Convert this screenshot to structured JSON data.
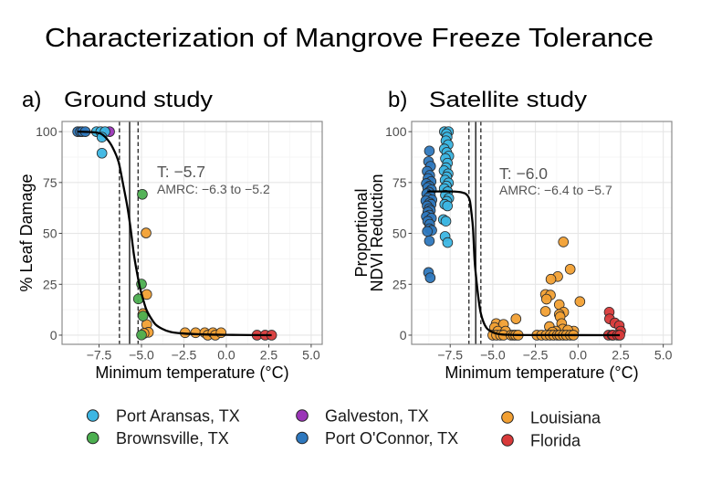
{
  "page": {
    "title": "Characterization of Mangrove Freeze Tolerance"
  },
  "legend": {
    "items": [
      {
        "label": "Port Aransas, TX",
        "color": "#3CB6E3"
      },
      {
        "label": "Brownsville, TX",
        "color": "#4CAF50"
      },
      {
        "label": "Galveston, TX",
        "color": "#9B35B8"
      },
      {
        "label": "Port O'Connor, TX",
        "color": "#2E78BE"
      },
      {
        "label": "Louisiana",
        "color": "#F2A033"
      },
      {
        "label": "Florida",
        "color": "#D93A3A"
      }
    ]
  },
  "chart_data": [
    {
      "type": "scatter",
      "panel_label": "a)",
      "title": "Ground study",
      "xlabel": "Minimum temperature (°C)",
      "ylabel": [
        "% Leaf Damage"
      ],
      "xlim": [
        -9.68,
        5.65
      ],
      "ylim": [
        -4.5,
        105
      ],
      "xticks": [
        -7.5,
        -5,
        -2.5,
        0,
        2.5,
        5
      ],
      "xtick_labels": [
        "−7.5",
        "−5.0",
        "−2.5",
        "0.0",
        "2.5",
        "5.0"
      ],
      "yticks": [
        0,
        25,
        50,
        75,
        100
      ],
      "ytick_labels": [
        "0",
        "25",
        "50",
        "75",
        "100"
      ],
      "grid": true,
      "legend_placement": "bottom",
      "threshold": {
        "value": -5.7,
        "label": "T: −5.7"
      },
      "amrc": {
        "range": [
          -6.3,
          -5.2
        ],
        "label": "AMRC: −6.3 to −5.2"
      },
      "fit_curve": {
        "x": [
          -8.76,
          -8.0,
          -7.4,
          -6.9,
          -6.6,
          -6.34,
          -6.08,
          -5.81,
          -5.63,
          -5.45,
          -5.27,
          -5.09,
          -4.9,
          -4.73,
          -4.45,
          -4.19,
          -3.8,
          -3.3,
          -2.5,
          -1.5,
          0,
          1.5,
          2.67
        ],
        "y": [
          100,
          99.8,
          99,
          95,
          90.5,
          84.8,
          74,
          62,
          51.7,
          39.8,
          31,
          23.3,
          17.5,
          12.9,
          8.5,
          5.4,
          3.2,
          1.6,
          0.8,
          0.4,
          0.15,
          0.05,
          0
        ]
      },
      "series": [
        {
          "name": "Louisiana",
          "points": [
            [
              -4.73,
              50.2
            ],
            [
              -4.69,
              20.0
            ],
            [
              -4.91,
              10.6
            ],
            [
              -4.69,
              5.2
            ],
            [
              -4.59,
              1.4
            ],
            [
              -4.85,
              0.9
            ],
            [
              -2.43,
              1.2
            ],
            [
              -1.81,
              1.2
            ],
            [
              -1.27,
              1.2
            ],
            [
              -1.09,
              0.0
            ],
            [
              -0.79,
              1.2
            ],
            [
              -0.65,
              0.0
            ],
            [
              -0.31,
              1.2
            ]
          ]
        },
        {
          "name": "Florida",
          "points": [
            [
              1.81,
              0
            ],
            [
              2.29,
              0
            ],
            [
              2.67,
              0
            ]
          ]
        },
        {
          "name": "Galveston, TX",
          "points": [
            [
              -6.88,
              100
            ]
          ]
        },
        {
          "name": "Port O'Connor, TX",
          "points": [
            [
              -8.76,
              100
            ],
            [
              -8.6,
              100
            ],
            [
              -8.49,
              100
            ],
            [
              -8.31,
              100
            ]
          ]
        },
        {
          "name": "Port Aransas, TX",
          "points": [
            [
              -7.65,
              100
            ],
            [
              -7.4,
              100
            ],
            [
              -7.15,
              100
            ],
            [
              -7.33,
              97.3
            ],
            [
              -7.33,
              89.4
            ]
          ]
        },
        {
          "name": "Brownsville, TX",
          "points": [
            [
              -4.95,
              69.2
            ],
            [
              -5.0,
              25.1
            ],
            [
              -5.18,
              17.8
            ],
            [
              -4.91,
              9.4
            ],
            [
              -5.0,
              0.1
            ]
          ]
        }
      ]
    },
    {
      "type": "scatter",
      "panel_label": "b)",
      "title": "Satellite study",
      "xlabel": "Minimum temperature (°C)",
      "ylabel": [
        "Proportional",
        "NDVI Reduction"
      ],
      "xlim": [
        -9.76,
        5.5
      ],
      "ylim": [
        -4.5,
        105
      ],
      "xticks": [
        -7.5,
        -5,
        -2.5,
        0,
        2.5,
        5
      ],
      "xtick_labels": [
        "−7.5",
        "−5.0",
        "−2.5",
        "0.0",
        "2.5",
        "5.0"
      ],
      "yticks": [
        0,
        25,
        50,
        75,
        100
      ],
      "ytick_labels": [
        "0",
        "25",
        "50",
        "75",
        "100"
      ],
      "grid": true,
      "legend_placement": "bottom",
      "threshold": {
        "value": -6.0,
        "label": "T: −6.0"
      },
      "amrc": {
        "range": [
          -6.4,
          -5.7
        ],
        "label": "AMRC: −6.4 to −5.7"
      },
      "fit_curve": {
        "x": [
          -8.84,
          -7.5,
          -7.0,
          -6.8,
          -6.6,
          -6.45,
          -6.34,
          -6.25,
          -6.16,
          -6.07,
          -5.98,
          -5.89,
          -5.8,
          -5.71,
          -5.55,
          -5.36,
          -5.0,
          -4.64,
          -4.0,
          -3.0,
          2.45
        ],
        "y": [
          70.6,
          70.6,
          70.4,
          70.1,
          69.5,
          68.2,
          65.8,
          60,
          52.3,
          37,
          28.5,
          21.5,
          15.5,
          11,
          6.5,
          3.5,
          1.4,
          0.5,
          0.15,
          0.03,
          0
        ]
      },
      "series": [
        {
          "name": "Louisiana",
          "points": [
            [
              -0.86,
              45.8
            ],
            [
              -0.46,
              32.4
            ],
            [
              -1.19,
              28.8
            ],
            [
              -1.59,
              27.5
            ],
            [
              -1.91,
              20
            ],
            [
              -1.62,
              19.7
            ],
            [
              -1.85,
              17.7
            ],
            [
              0.11,
              16.5
            ],
            [
              -1.1,
              15
            ],
            [
              -1.91,
              11.7
            ],
            [
              -0.84,
              11.3
            ],
            [
              -1.1,
              10.2
            ],
            [
              -1.05,
              9
            ],
            [
              -3.64,
              8
            ],
            [
              -4.8,
              5.7
            ],
            [
              -4.37,
              5.3
            ],
            [
              -0.96,
              5.7
            ],
            [
              -1.68,
              4.2
            ],
            [
              -4.9,
              3.8
            ],
            [
              -0.9,
              3
            ],
            [
              -0.25,
              2
            ],
            [
              -4.7,
              2
            ],
            [
              -4.25,
              2
            ],
            [
              -1.3,
              2
            ],
            [
              -0.6,
              2.5
            ],
            [
              -1.5,
              1.5
            ],
            [
              -5.0,
              0
            ],
            [
              -4.78,
              0
            ],
            [
              -4.55,
              0
            ],
            [
              -4.37,
              0
            ],
            [
              -3.93,
              0
            ],
            [
              -3.78,
              0
            ],
            [
              -3.66,
              0
            ],
            [
              -3.51,
              0
            ],
            [
              -2.41,
              0
            ],
            [
              -2.14,
              0
            ],
            [
              -1.87,
              0
            ],
            [
              -1.64,
              0
            ],
            [
              -1.43,
              0
            ],
            [
              -1.21,
              0
            ],
            [
              -1.07,
              0
            ],
            [
              -0.86,
              0
            ],
            [
              -0.68,
              0
            ],
            [
              -0.45,
              0
            ],
            [
              -0.27,
              0
            ]
          ]
        },
        {
          "name": "Florida",
          "points": [
            [
              1.83,
              11.3
            ],
            [
              1.85,
              8
            ],
            [
              2.16,
              6
            ],
            [
              2.42,
              4.7
            ],
            [
              2.5,
              2
            ],
            [
              1.79,
              0
            ],
            [
              2.0,
              0
            ],
            [
              2.06,
              0
            ],
            [
              2.32,
              0
            ],
            [
              2.45,
              0
            ]
          ]
        },
        {
          "name": "Port O'Connor, TX",
          "points": [
            [
              -8.72,
              90.5
            ],
            [
              -8.77,
              85.3
            ],
            [
              -8.65,
              83
            ],
            [
              -8.85,
              80.5
            ],
            [
              -8.7,
              78.5
            ],
            [
              -8.8,
              77
            ],
            [
              -8.62,
              75.5
            ],
            [
              -8.9,
              74.5
            ],
            [
              -8.72,
              73.2
            ],
            [
              -8.82,
              72.5
            ],
            [
              -8.6,
              71.5
            ],
            [
              -8.75,
              70.3
            ],
            [
              -8.88,
              69.5
            ],
            [
              -8.66,
              68.5
            ],
            [
              -8.8,
              67.3
            ],
            [
              -8.57,
              66.5
            ],
            [
              -8.93,
              66
            ],
            [
              -8.7,
              65
            ],
            [
              -8.62,
              64.3
            ],
            [
              -8.85,
              63.5
            ],
            [
              -8.73,
              62.2
            ],
            [
              -8.66,
              61.3
            ],
            [
              -8.81,
              60.5
            ],
            [
              -8.72,
              59
            ],
            [
              -8.9,
              58.3
            ],
            [
              -8.6,
              57.5
            ],
            [
              -8.82,
              56
            ],
            [
              -8.7,
              54.5
            ],
            [
              -8.72,
              52.3
            ],
            [
              -8.58,
              51.5
            ],
            [
              -8.84,
              51
            ],
            [
              -8.72,
              46.3
            ],
            [
              -8.77,
              30.8
            ],
            [
              -8.67,
              28.2
            ]
          ]
        },
        {
          "name": "Port Aransas, TX",
          "points": [
            [
              -7.84,
              100
            ],
            [
              -7.6,
              100
            ],
            [
              -7.72,
              99
            ],
            [
              -7.68,
              97.3
            ],
            [
              -7.75,
              95.5
            ],
            [
              -7.62,
              93.6
            ],
            [
              -7.84,
              91.5
            ],
            [
              -7.7,
              89.8
            ],
            [
              -7.58,
              88
            ],
            [
              -7.78,
              86.8
            ],
            [
              -7.66,
              84.5
            ],
            [
              -7.74,
              82.3
            ],
            [
              -7.86,
              80.8
            ],
            [
              -7.62,
              79.3
            ],
            [
              -7.7,
              77.8
            ],
            [
              -7.8,
              76.2
            ],
            [
              -7.6,
              74.8
            ],
            [
              -7.72,
              73.3
            ],
            [
              -7.85,
              72
            ],
            [
              -7.65,
              70.5
            ],
            [
              -7.78,
              68.8
            ],
            [
              -7.58,
              67.3
            ],
            [
              -7.7,
              65.8
            ],
            [
              -7.82,
              64.3
            ],
            [
              -7.66,
              63.5
            ],
            [
              -7.9,
              56.8
            ],
            [
              -7.75,
              56
            ],
            [
              -7.8,
              48.5
            ],
            [
              -7.65,
              45.5
            ]
          ]
        }
      ]
    }
  ]
}
